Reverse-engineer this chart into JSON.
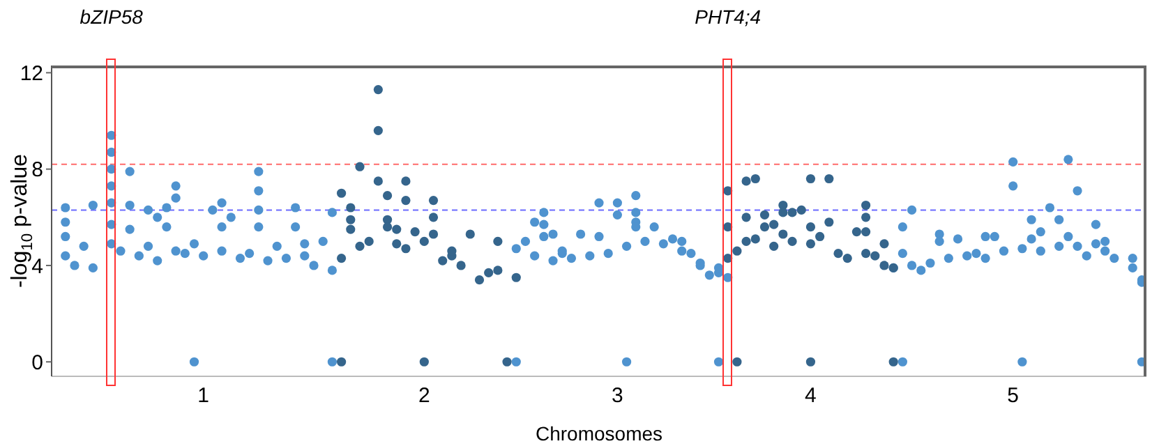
{
  "chart_data": {
    "type": "scatter",
    "xlabel": "Chromosomes",
    "ylabel": "-log$_{10}$ p-value",
    "categories": [
      null,
      null,
      null,
      null,
      null,
      null,
      null,
      null,
      null,
      null,
      null,
      null,
      null,
      null,
      null,
      null,
      "1",
      null,
      null,
      null,
      null,
      null,
      null,
      null,
      null,
      null,
      null,
      null,
      null,
      null,
      null,
      null,
      null,
      null,
      null,
      null,
      null,
      null,
      null,
      null,
      "2",
      null,
      null,
      null,
      null,
      null,
      null,
      null,
      null,
      null,
      null,
      null,
      null,
      null,
      null,
      null,
      null,
      null,
      null,
      null,
      null,
      "3",
      null,
      null,
      null,
      null,
      null,
      null,
      null,
      null,
      null,
      null,
      null,
      null,
      null,
      null,
      null,
      null,
      null,
      null,
      null,
      null,
      "4",
      null,
      null,
      null,
      null,
      null,
      null,
      null,
      null,
      null,
      null,
      null,
      null,
      null,
      null,
      null,
      null,
      null,
      null,
      null,
      null,
      null,
      "5",
      null,
      null,
      null,
      null,
      null,
      null,
      null,
      null,
      null,
      null,
      null,
      null,
      null,
      null
    ],
    "ylim": [
      -0.6,
      12.3
    ],
    "yticks": [
      0,
      4,
      8,
      12
    ],
    "grid": false,
    "legend": false,
    "marker": "circle",
    "annotations": [
      "bZIP58",
      "PHT4;4"
    ],
    "ref_lines": [
      {
        "axis": "y",
        "value": 8.2,
        "color": "#ff6b6b",
        "line_style": "dashed"
      },
      {
        "axis": "y",
        "value": 6.3,
        "color": "#6b6bff",
        "line_style": "dashed"
      }
    ],
    "series": [
      {
        "color": "#4f93cf",
        "values": [
          null,
          6.4,
          4.0,
          4.8,
          6.5,
          null,
          9.4,
          4.6,
          7.9,
          4.4,
          6.3,
          6.0,
          6.4,
          7.3,
          4.5,
          4.9,
          4.4,
          6.3,
          6.6,
          6.0,
          4.3,
          4.5,
          7.9,
          4.2,
          4.8,
          4.3,
          6.4,
          4.9,
          4.0,
          5.0,
          6.2,
          null,
          null,
          null,
          null,
          null,
          null,
          null,
          null,
          null,
          null,
          null,
          null,
          null,
          null,
          null,
          null,
          null,
          null,
          null,
          4.7,
          5.0,
          5.8,
          6.2,
          5.3,
          4.5,
          4.3,
          5.3,
          4.4,
          6.6,
          4.5,
          6.6,
          4.8,
          6.9,
          5.0,
          5.6,
          4.9,
          5.1,
          5.0,
          4.5,
          4.0,
          3.6,
          3.7,
          3.5,
          null,
          null,
          null,
          null,
          null,
          null,
          null,
          null,
          null,
          null,
          null,
          null,
          null,
          null,
          null,
          null,
          null,
          3.9,
          5.6,
          6.3,
          3.8,
          4.1,
          5.3,
          4.3,
          5.1,
          4.4,
          4.5,
          5.2,
          5.2,
          4.6,
          8.3,
          4.7,
          5.9,
          5.4,
          6.4,
          5.9,
          8.4,
          7.1,
          4.4,
          5.7,
          5.0,
          4.3,
          null,
          4.3,
          3.4
        ]
      },
      {
        "color": "#4f93cf",
        "values": [
          null,
          5.8,
          null,
          null,
          3.9,
          null,
          8.7,
          null,
          6.5,
          null,
          4.8,
          4.2,
          5.6,
          6.8,
          null,
          0,
          null,
          null,
          5.6,
          null,
          null,
          null,
          7.1,
          null,
          null,
          null,
          5.6,
          4.4,
          null,
          null,
          0,
          null,
          null,
          null,
          null,
          null,
          null,
          null,
          null,
          null,
          null,
          null,
          null,
          null,
          null,
          null,
          null,
          null,
          null,
          null,
          0,
          null,
          4.4,
          5.7,
          4.2,
          4.6,
          null,
          null,
          null,
          5.2,
          null,
          6.1,
          0,
          6.2,
          null,
          null,
          null,
          null,
          4.6,
          null,
          4.1,
          null,
          3.9,
          null,
          null,
          null,
          null,
          null,
          null,
          null,
          null,
          null,
          null,
          null,
          null,
          null,
          null,
          null,
          null,
          null,
          null,
          null,
          4.5,
          4.0,
          null,
          null,
          5.0,
          null,
          null,
          null,
          null,
          4.3,
          null,
          null,
          7.3,
          0,
          5.1,
          4.6,
          null,
          4.8,
          5.2,
          4.8,
          null,
          4.9,
          4.6,
          null,
          null,
          3.9,
          3.3
        ]
      },
      {
        "color": "#4f93cf",
        "values": [
          null,
          5.2,
          null,
          null,
          null,
          null,
          8.0,
          null,
          5.5,
          null,
          null,
          null,
          null,
          4.6,
          null,
          null,
          null,
          null,
          4.6,
          null,
          null,
          null,
          6.3,
          null,
          null,
          null,
          null,
          null,
          null,
          null,
          3.8,
          null,
          null,
          null,
          null,
          null,
          null,
          null,
          null,
          null,
          null,
          null,
          null,
          null,
          null,
          null,
          null,
          null,
          null,
          null,
          null,
          null,
          null,
          5.2,
          null,
          null,
          null,
          null,
          null,
          null,
          null,
          null,
          null,
          5.8,
          null,
          null,
          null,
          null,
          null,
          null,
          null,
          null,
          0,
          null,
          null,
          null,
          null,
          null,
          null,
          null,
          null,
          null,
          null,
          null,
          null,
          null,
          null,
          null,
          null,
          null,
          null,
          null,
          0,
          null,
          null,
          null,
          null,
          null,
          null,
          null,
          null,
          null,
          null,
          null,
          null,
          null,
          null,
          null,
          null,
          null,
          null,
          null,
          null,
          null,
          null,
          null,
          null,
          null,
          0
        ]
      },
      {
        "color": "#4f93cf",
        "values": [
          null,
          4.4,
          null,
          null,
          null,
          null,
          7.3,
          null,
          null,
          null,
          null,
          null,
          null,
          null,
          null,
          null,
          null,
          null,
          null,
          null,
          null,
          null,
          5.6,
          null,
          null,
          null,
          null,
          null,
          null,
          null,
          null,
          null,
          null,
          null,
          null,
          null,
          null,
          null,
          null,
          null,
          null,
          null,
          null,
          null,
          null,
          null,
          null,
          null,
          null,
          null,
          null,
          null,
          null,
          null,
          null,
          null,
          null,
          null,
          null,
          null,
          null,
          null,
          null,
          5.6,
          null,
          null,
          null,
          null,
          null,
          null,
          null,
          null,
          null,
          null,
          null,
          null,
          null,
          null,
          null,
          null,
          null,
          null,
          null,
          null,
          null,
          null,
          null,
          null,
          null,
          null,
          null,
          null,
          null,
          null,
          null,
          null,
          null,
          null,
          null,
          null,
          null,
          null,
          null,
          null,
          null,
          null,
          null,
          null,
          null,
          null,
          null,
          null,
          null,
          null,
          null,
          null,
          null,
          null,
          null
        ]
      },
      {
        "color": "#4f93cf",
        "values": [
          null,
          null,
          null,
          null,
          null,
          null,
          6.6,
          null,
          null,
          null,
          null,
          null,
          null,
          null,
          null,
          null,
          null,
          null,
          null,
          null,
          null,
          null,
          null,
          null,
          null,
          null,
          null,
          null,
          null,
          null,
          null,
          null,
          null,
          null,
          null,
          null,
          null,
          null,
          null,
          null,
          null,
          null,
          null,
          null,
          null,
          null,
          null,
          null,
          null,
          null,
          null,
          null,
          null,
          null,
          null,
          null,
          null,
          null,
          null,
          null,
          null,
          null,
          null,
          null,
          null,
          null,
          null,
          null,
          null,
          null,
          null,
          null,
          null,
          null,
          null,
          null,
          null,
          null,
          null,
          null,
          null,
          null,
          null,
          null,
          null,
          null,
          null,
          null,
          null,
          null,
          null,
          null,
          null,
          null,
          null,
          null,
          null,
          null,
          null,
          null,
          null,
          null,
          null,
          null,
          null,
          null,
          null,
          null,
          null,
          null,
          null,
          null,
          null,
          null,
          null,
          null,
          null,
          null,
          null
        ]
      },
      {
        "color": "#4f93cf",
        "values": [
          null,
          null,
          null,
          null,
          null,
          null,
          5.7,
          null,
          null,
          null,
          null,
          null,
          null,
          null,
          null,
          null,
          null,
          null,
          null,
          null,
          null,
          null,
          null,
          null,
          null,
          null,
          null,
          null,
          null,
          null,
          null,
          null,
          null,
          null,
          null,
          null,
          null,
          null,
          null,
          null,
          null,
          null,
          null,
          null,
          null,
          null,
          null,
          null,
          null,
          null,
          null,
          null,
          null,
          null,
          null,
          null,
          null,
          null,
          null,
          null,
          null,
          null,
          null,
          null,
          null,
          null,
          null,
          null,
          null,
          null,
          null,
          null,
          null,
          null,
          null,
          null,
          null,
          null,
          null,
          null,
          null,
          null,
          null,
          null,
          null,
          null,
          null,
          null,
          null,
          null,
          null,
          null,
          null,
          null,
          null,
          null,
          null,
          null,
          null,
          null,
          null,
          null,
          null,
          null,
          null,
          null,
          null,
          null,
          null,
          null,
          null,
          null,
          null,
          null,
          null,
          null,
          null,
          null,
          null
        ]
      },
      {
        "color": "#4f93cf",
        "values": [
          null,
          null,
          null,
          null,
          null,
          null,
          4.9,
          null,
          null,
          null,
          null,
          null,
          null,
          null,
          null,
          null,
          null,
          null,
          null,
          null,
          null,
          null,
          null,
          null,
          null,
          null,
          null,
          null,
          null,
          null,
          null,
          null,
          null,
          null,
          null,
          null,
          null,
          null,
          null,
          null,
          null,
          null,
          null,
          null,
          null,
          null,
          null,
          null,
          null,
          null,
          null,
          null,
          null,
          null,
          null,
          null,
          null,
          null,
          null,
          null,
          null,
          null,
          null,
          null,
          null,
          null,
          null,
          null,
          null,
          null,
          null,
          null,
          null,
          null,
          null,
          null,
          null,
          null,
          null,
          null,
          null,
          null,
          null,
          null,
          null,
          null,
          null,
          null,
          null,
          null,
          null,
          null,
          null,
          null,
          null,
          null,
          null,
          null,
          null,
          null,
          null,
          null,
          null,
          null,
          null,
          null,
          null,
          null,
          null,
          null,
          null,
          null,
          null,
          null,
          null,
          null,
          null,
          null,
          null
        ]
      },
      {
        "color": "#35658c",
        "values": [
          null,
          null,
          null,
          null,
          null,
          null,
          null,
          null,
          null,
          null,
          null,
          null,
          null,
          null,
          null,
          null,
          null,
          null,
          null,
          null,
          null,
          null,
          null,
          null,
          null,
          null,
          null,
          null,
          null,
          null,
          null,
          7.0,
          6.4,
          8.1,
          5.0,
          11.3,
          6.9,
          5.5,
          7.5,
          5.4,
          5.0,
          6.7,
          4.2,
          4.4,
          4.0,
          5.3,
          3.4,
          3.7,
          5.0,
          0,
          3.5,
          null,
          null,
          null,
          null,
          null,
          null,
          null,
          null,
          null,
          null,
          null,
          null,
          null,
          null,
          null,
          null,
          null,
          null,
          null,
          null,
          null,
          null,
          7.1,
          4.6,
          7.5,
          7.6,
          6.1,
          4.8,
          6.5,
          6.2,
          6.3,
          7.6,
          5.2,
          7.6,
          4.5,
          4.3,
          5.4,
          6.5,
          4.4,
          4.9,
          3.9,
          null,
          null,
          null,
          null,
          null,
          null,
          null,
          null,
          null,
          null,
          null,
          null,
          null,
          null,
          null,
          null,
          null,
          null,
          null,
          null,
          null,
          null,
          null,
          null,
          null,
          null,
          null
        ]
      },
      {
        "color": "#35658c",
        "values": [
          null,
          null,
          null,
          null,
          null,
          null,
          null,
          null,
          null,
          null,
          null,
          null,
          null,
          null,
          null,
          null,
          null,
          null,
          null,
          null,
          null,
          null,
          null,
          null,
          null,
          null,
          null,
          null,
          null,
          null,
          null,
          4.3,
          5.9,
          4.8,
          null,
          9.6,
          5.9,
          4.9,
          6.7,
          null,
          0,
          6.0,
          null,
          4.6,
          null,
          null,
          null,
          null,
          3.8,
          null,
          null,
          null,
          null,
          null,
          null,
          null,
          null,
          null,
          null,
          null,
          null,
          null,
          null,
          null,
          null,
          null,
          null,
          null,
          null,
          null,
          null,
          null,
          null,
          5.6,
          0,
          null,
          5.1,
          5.6,
          5.7,
          6.2,
          5.0,
          null,
          5.6,
          null,
          5.8,
          null,
          null,
          null,
          6.0,
          null,
          4.0,
          0,
          null,
          null,
          null,
          null,
          null,
          null,
          null,
          null,
          null,
          null,
          null,
          null,
          null,
          null,
          null,
          null,
          null,
          null,
          null,
          null,
          null,
          null,
          null,
          null,
          null,
          null,
          null
        ]
      },
      {
        "color": "#35658c",
        "values": [
          null,
          null,
          null,
          null,
          null,
          null,
          null,
          null,
          null,
          null,
          null,
          null,
          null,
          null,
          null,
          null,
          null,
          null,
          null,
          null,
          null,
          null,
          null,
          null,
          null,
          null,
          null,
          null,
          null,
          null,
          null,
          0,
          5.5,
          null,
          null,
          7.5,
          5.6,
          null,
          4.7,
          null,
          null,
          5.3,
          null,
          null,
          null,
          null,
          null,
          null,
          null,
          null,
          null,
          null,
          null,
          null,
          null,
          null,
          null,
          null,
          null,
          null,
          null,
          null,
          null,
          null,
          null,
          null,
          null,
          null,
          null,
          null,
          null,
          null,
          null,
          4.3,
          null,
          6.0,
          null,
          null,
          null,
          5.3,
          null,
          null,
          4.9,
          null,
          null,
          null,
          null,
          null,
          5.4,
          null,
          null,
          null,
          null,
          null,
          null,
          null,
          null,
          null,
          null,
          null,
          null,
          null,
          null,
          null,
          null,
          null,
          null,
          null,
          null,
          null,
          null,
          null,
          null,
          null,
          null,
          null,
          null,
          null,
          null
        ]
      },
      {
        "color": "#35658c",
        "values": [
          null,
          null,
          null,
          null,
          null,
          null,
          null,
          null,
          null,
          null,
          null,
          null,
          null,
          null,
          null,
          null,
          null,
          null,
          null,
          null,
          null,
          null,
          null,
          null,
          null,
          null,
          null,
          null,
          null,
          null,
          null,
          null,
          null,
          null,
          null,
          null,
          null,
          null,
          null,
          null,
          null,
          null,
          null,
          null,
          null,
          null,
          null,
          null,
          null,
          null,
          null,
          null,
          null,
          null,
          null,
          null,
          null,
          null,
          null,
          null,
          null,
          null,
          null,
          null,
          null,
          null,
          null,
          null,
          null,
          null,
          null,
          null,
          null,
          null,
          null,
          5.0,
          null,
          null,
          null,
          null,
          null,
          null,
          0,
          null,
          null,
          null,
          null,
          null,
          4.5,
          null,
          null,
          null,
          null,
          null,
          null,
          null,
          null,
          null,
          null,
          null,
          null,
          null,
          null,
          null,
          null,
          null,
          null,
          null,
          null,
          null,
          null,
          null,
          null,
          null,
          null,
          null,
          null,
          null,
          null
        ]
      }
    ]
  }
}
